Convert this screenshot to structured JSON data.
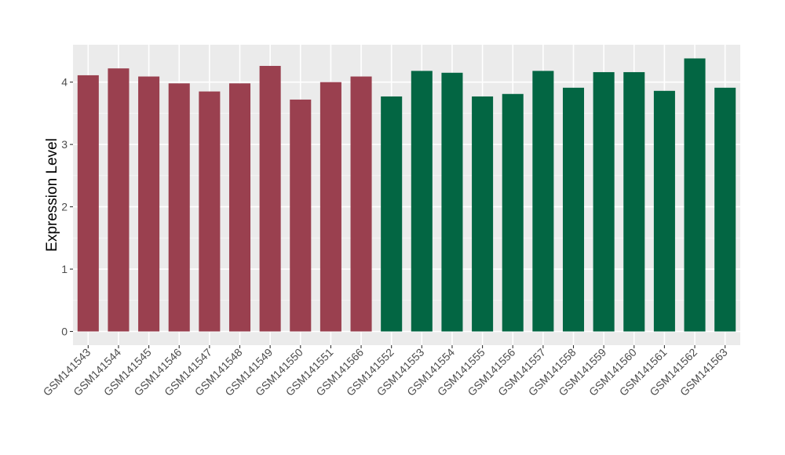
{
  "chart_data": {
    "type": "bar",
    "title": "",
    "xlabel": "",
    "ylabel": "Expression Level",
    "ylim": [
      -0.22,
      4.6
    ],
    "yticks": [
      0,
      1,
      2,
      3,
      4
    ],
    "grid": true,
    "legend": "none",
    "colors": {
      "panel": "#ebebeb",
      "grid_major": "#ffffff",
      "grid_minor": "#f5f5f5",
      "group_a": "#9a404f",
      "group_b": "#036643"
    },
    "categories": [
      "GSM141543",
      "GSM141544",
      "GSM141545",
      "GSM141546",
      "GSM141547",
      "GSM141548",
      "GSM141549",
      "GSM141550",
      "GSM141551",
      "GSM141566",
      "GSM141552",
      "GSM141553",
      "GSM141554",
      "GSM141555",
      "GSM141556",
      "GSM141557",
      "GSM141558",
      "GSM141559",
      "GSM141560",
      "GSM141561",
      "GSM141562",
      "GSM141563"
    ],
    "values": [
      4.11,
      4.22,
      4.09,
      3.98,
      3.85,
      3.98,
      4.26,
      3.72,
      4.0,
      4.09,
      3.77,
      4.18,
      4.15,
      3.77,
      3.81,
      4.18,
      3.91,
      4.16,
      4.16,
      3.86,
      4.38,
      3.91
    ],
    "groups": [
      "a",
      "a",
      "a",
      "a",
      "a",
      "a",
      "a",
      "a",
      "a",
      "a",
      "b",
      "b",
      "b",
      "b",
      "b",
      "b",
      "b",
      "b",
      "b",
      "b",
      "b",
      "b"
    ]
  }
}
